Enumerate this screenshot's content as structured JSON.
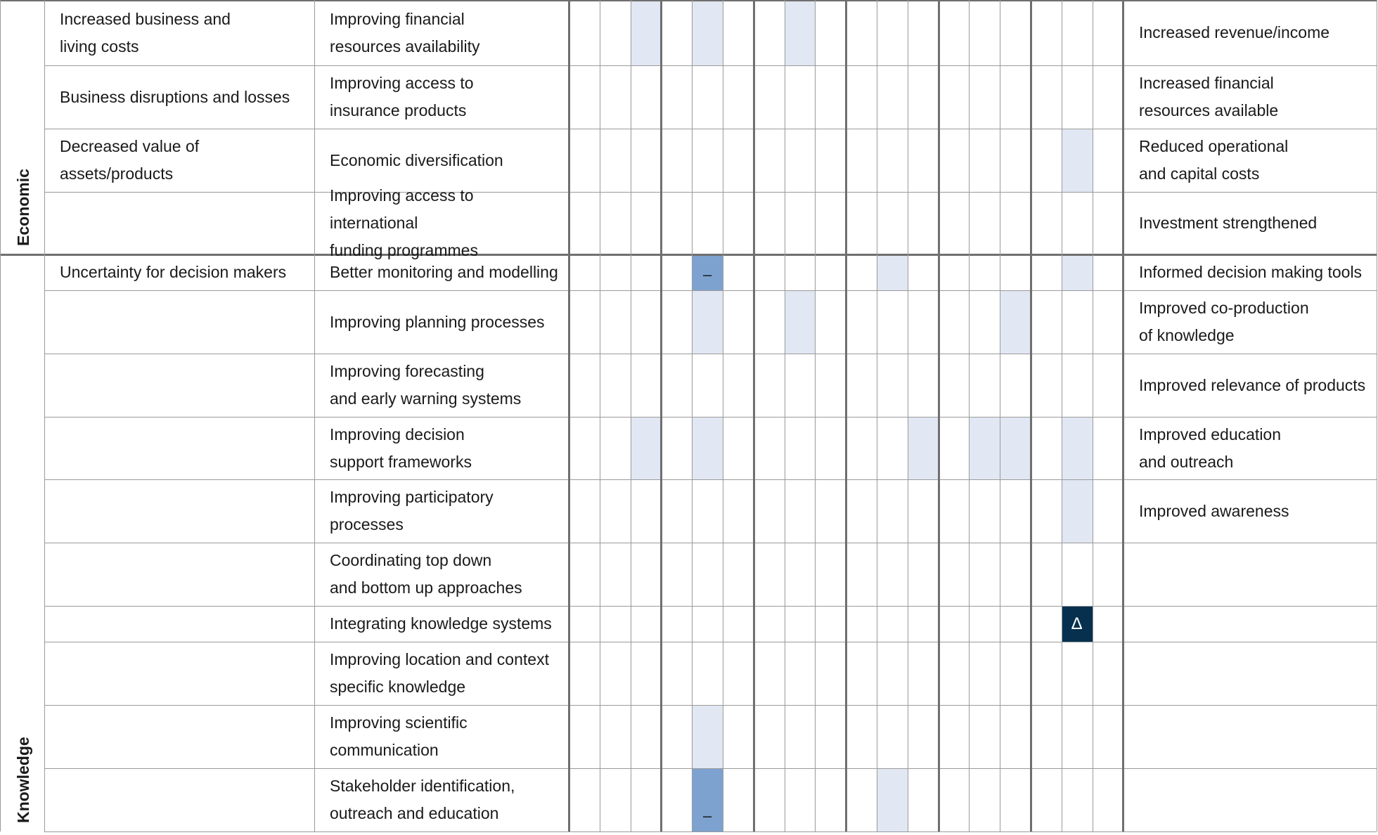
{
  "groups": [
    {
      "label": "Economic"
    },
    {
      "label": "Knowledge"
    }
  ],
  "rows": [
    {
      "impact": "Increased business and\nliving costs",
      "option": "Improving financial\nresources availability",
      "outcome": "Increased revenue/income"
    },
    {
      "impact": "Business disruptions and losses",
      "option": "Improving access to\ninsurance products",
      "outcome": "Increased financial\nresources available"
    },
    {
      "impact": "Decreased value of assets/products",
      "option": "Economic diversification",
      "outcome": "Reduced operational\nand capital costs"
    },
    {
      "impact": "",
      "option": "Improving access to international\nfunding programmes",
      "outcome": "Investment strengthened"
    },
    {
      "impact": "Uncertainty for decision makers",
      "option": "Better monitoring and modelling",
      "outcome": "Informed decision making tools"
    },
    {
      "impact": "",
      "option": "Improving planning processes",
      "outcome": "Improved co-production\nof knowledge"
    },
    {
      "impact": "",
      "option": "Improving forecasting\nand early warning systems",
      "outcome": "Improved relevance of products"
    },
    {
      "impact": "",
      "option": "Improving decision\nsupport frameworks",
      "outcome": "Improved education\nand outreach"
    },
    {
      "impact": "",
      "option": "Improving participatory\nprocesses",
      "outcome": "Improved awareness"
    },
    {
      "impact": "",
      "option": "Coordinating top down\nand bottom up approaches",
      "outcome": ""
    },
    {
      "impact": "",
      "option": "Integrating knowledge systems",
      "outcome": ""
    },
    {
      "impact": "",
      "option": "Improving location and context\nspecific knowledge",
      "outcome": ""
    },
    {
      "impact": "",
      "option": "Improving scientific\ncommunication",
      "outcome": ""
    },
    {
      "impact": "",
      "option": "Stakeholder identification,\noutreach and education",
      "outcome": ""
    }
  ],
  "matrix": {
    "column_count": 18,
    "cells": [
      {
        "row": 0,
        "col": 2,
        "shade": "light",
        "symbol": ""
      },
      {
        "row": 0,
        "col": 4,
        "shade": "light",
        "symbol": ""
      },
      {
        "row": 0,
        "col": 7,
        "shade": "light",
        "symbol": ""
      },
      {
        "row": 2,
        "col": 16,
        "shade": "light",
        "symbol": ""
      },
      {
        "row": 4,
        "col": 4,
        "shade": "mid",
        "symbol": "–"
      },
      {
        "row": 4,
        "col": 10,
        "shade": "light",
        "symbol": ""
      },
      {
        "row": 4,
        "col": 16,
        "shade": "light",
        "symbol": ""
      },
      {
        "row": 5,
        "col": 4,
        "shade": "light",
        "symbol": ""
      },
      {
        "row": 5,
        "col": 7,
        "shade": "light",
        "symbol": ""
      },
      {
        "row": 5,
        "col": 14,
        "shade": "light",
        "symbol": ""
      },
      {
        "row": 7,
        "col": 2,
        "shade": "light",
        "symbol": ""
      },
      {
        "row": 7,
        "col": 4,
        "shade": "light",
        "symbol": ""
      },
      {
        "row": 7,
        "col": 11,
        "shade": "light",
        "symbol": ""
      },
      {
        "row": 7,
        "col": 13,
        "shade": "light",
        "symbol": ""
      },
      {
        "row": 7,
        "col": 14,
        "shade": "light",
        "symbol": ""
      },
      {
        "row": 7,
        "col": 16,
        "shade": "light",
        "symbol": ""
      },
      {
        "row": 8,
        "col": 16,
        "shade": "light",
        "symbol": ""
      },
      {
        "row": 10,
        "col": 16,
        "shade": "dark",
        "symbol": "Δ"
      },
      {
        "row": 12,
        "col": 4,
        "shade": "light",
        "symbol": ""
      },
      {
        "row": 13,
        "col": 4,
        "shade": "mid",
        "symbol": "–"
      },
      {
        "row": 13,
        "col": 10,
        "shade": "light",
        "symbol": ""
      }
    ],
    "colors": {
      "light": "#e1e7f3",
      "mid": "#7da2d0",
      "dark": "#07304f"
    }
  }
}
